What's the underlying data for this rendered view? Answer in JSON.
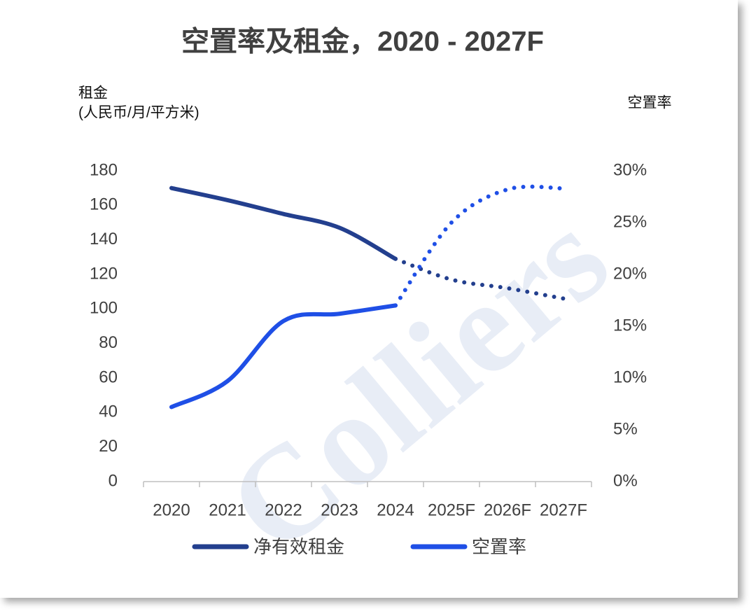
{
  "chart_data": {
    "type": "line",
    "title": "空置率及租金，2020 - 2027F",
    "y_label": [
      "租金",
      "(人民币/月/平方米)"
    ],
    "y2_label": "空置率",
    "watermark": "Colliers",
    "categories": [
      "2020",
      "2021",
      "2022",
      "2023",
      "2024",
      "2025F",
      "2026F",
      "2027F"
    ],
    "series": [
      {
        "name": "净有效租金",
        "color": "#233f8e",
        "values": [
          170,
          163,
          155,
          147,
          129,
          117,
          112,
          106
        ]
      },
      {
        "name": "空置率",
        "color": "#1f4fe6",
        "axis": "y2",
        "values": [
          7.2,
          9.7,
          15.5,
          16.2,
          17.0,
          25.0,
          28.2,
          28.3
        ]
      }
    ],
    "ylim": [
      0,
      180
    ],
    "yticks": [
      0,
      20,
      40,
      60,
      80,
      100,
      120,
      140,
      160,
      180
    ],
    "y2lim": [
      0,
      30
    ],
    "y2ticks": [
      {
        "value": 0,
        "label": "0%"
      },
      {
        "value": 5,
        "label": "5%"
      },
      {
        "value": 10,
        "label": "10%"
      },
      {
        "value": 15,
        "label": "15%"
      },
      {
        "value": 20,
        "label": "20%"
      },
      {
        "value": 25,
        "label": "25%"
      },
      {
        "value": 30,
        "label": "30%"
      }
    ],
    "legend": "bottom",
    "grid": false
  }
}
